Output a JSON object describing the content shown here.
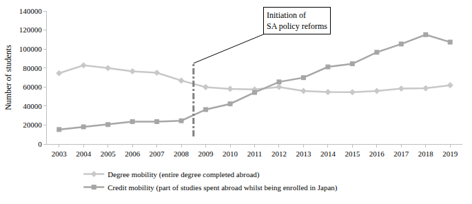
{
  "chart_data": {
    "type": "line",
    "y_label": "Number of students",
    "x": [
      2003,
      2004,
      2005,
      2006,
      2007,
      2008,
      2009,
      2010,
      2011,
      2012,
      2013,
      2014,
      2015,
      2016,
      2017,
      2018,
      2019
    ],
    "series": [
      {
        "name": "Degree mobility (entire degree completed abroad)",
        "color": "#c8c8c8",
        "marker": "diamond",
        "line_style": "solid",
        "values": [
          74500,
          82900,
          80000,
          76500,
          75100,
          66800,
          59900,
          58100,
          57500,
          60100,
          55900,
          54700,
          54600,
          55900,
          58400,
          58700,
          61900
        ]
      },
      {
        "name": "Credit mobility (part of studies spent abroad whilst being enrolled in Japan)",
        "color": "#a6a6a6",
        "marker": "square",
        "line_style": "solid",
        "values": [
          15300,
          18100,
          20500,
          23600,
          23600,
          24500,
          36300,
          42300,
          54300,
          65400,
          69900,
          81200,
          84500,
          96600,
          105300,
          115100,
          107300
        ]
      }
    ],
    "xlim": [
      2002.5,
      2019.5
    ],
    "xticks": [
      2003,
      2004,
      2005,
      2006,
      2007,
      2008,
      2009,
      2010,
      2011,
      2012,
      2013,
      2014,
      2015,
      2016,
      2017,
      2018,
      2019
    ],
    "ylim": [
      0,
      140000
    ],
    "yticks": [
      0,
      20000,
      40000,
      60000,
      80000,
      100000,
      120000,
      140000
    ],
    "grid": false,
    "legend": "bottom",
    "annotations": [
      {
        "text": "Initiation of\nSA policy reforms",
        "x": 2008.5,
        "y_range": [
          8000,
          85000
        ],
        "color": "#7f7f7f",
        "line_style": "dashdot"
      }
    ]
  }
}
